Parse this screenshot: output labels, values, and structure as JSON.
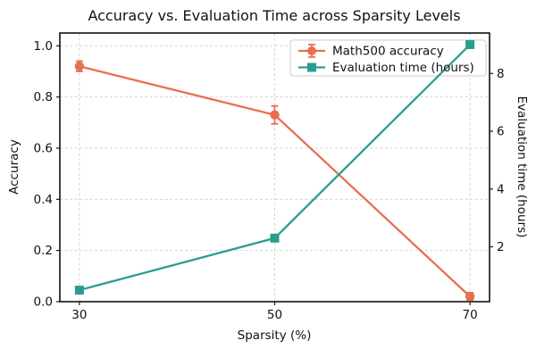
{
  "chart_data": {
    "type": "line",
    "title": "Accuracy vs. Evaluation Time across Sparsity Levels",
    "xlabel": "Sparsity (%)",
    "x": [
      30,
      50,
      70
    ],
    "xlim": [
      28,
      72
    ],
    "xticks": {
      "values": [
        30,
        50,
        70
      ],
      "labels": [
        "30",
        "50",
        "70"
      ]
    },
    "grid": true,
    "legend": {
      "position": "upper right",
      "entries": [
        "Math500 accuracy",
        "Evaluation time (hours)"
      ]
    },
    "axes": {
      "left": {
        "label": "Accuracy",
        "lim": [
          0,
          1.05
        ],
        "ticks": {
          "values": [
            0,
            0.2,
            0.4,
            0.6,
            0.8,
            1.0
          ],
          "labels": [
            "0.0",
            "0.2",
            "0.4",
            "0.6",
            "0.8",
            "1.0"
          ]
        }
      },
      "right": {
        "label": "Evaluation time (hours)",
        "lim": [
          0.1,
          9.4
        ],
        "ticks": {
          "values": [
            2,
            4,
            6,
            8
          ],
          "labels": [
            "2",
            "4",
            "6",
            "8"
          ]
        }
      }
    },
    "series": [
      {
        "name": "Math500 accuracy",
        "axis": "left",
        "color": "#E76F51",
        "marker": "circle",
        "values": [
          0.92,
          0.73,
          0.02
        ],
        "yerr": [
          0.02,
          0.035,
          0.015
        ]
      },
      {
        "name": "Evaluation time (hours)",
        "axis": "right",
        "color": "#2A9D8F",
        "marker": "square",
        "values": [
          0.5,
          2.3,
          9.0
        ],
        "yerr": null
      }
    ],
    "colors": {
      "grid": "#d4d4d4",
      "frame": "#000000",
      "background": "#ffffff"
    }
  }
}
